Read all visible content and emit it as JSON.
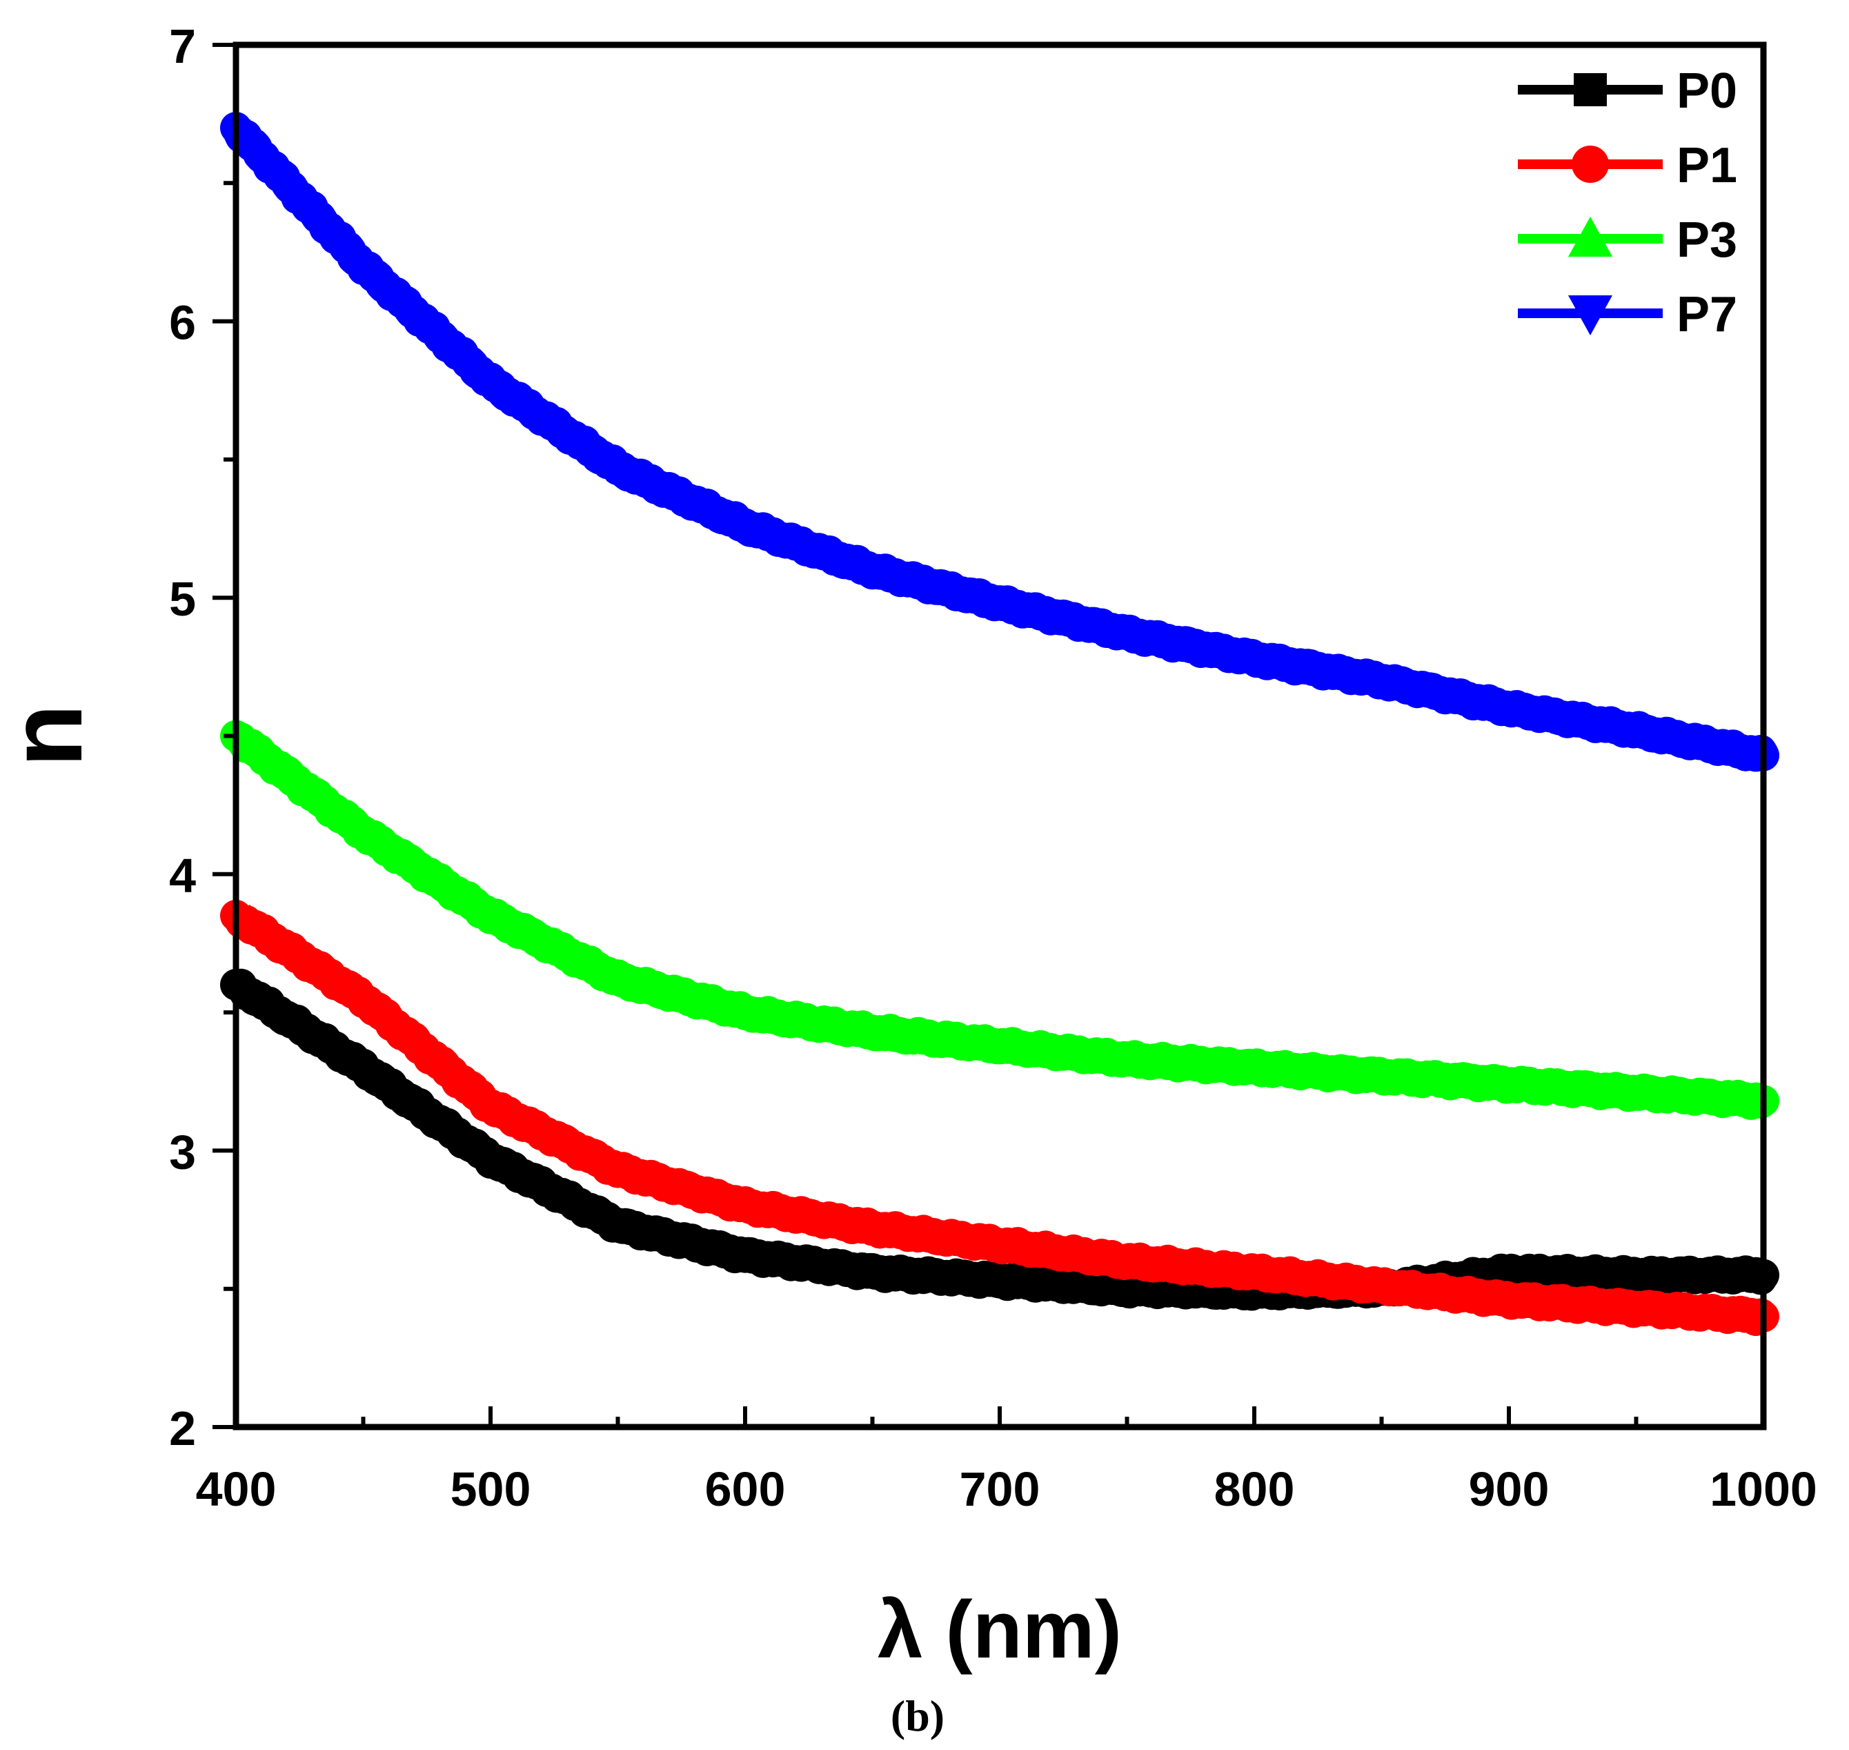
{
  "chart_data": {
    "type": "line",
    "title": "",
    "xlabel": "λ (nm)",
    "ylabel": "n",
    "xlim": [
      400,
      1000
    ],
    "ylim": [
      2,
      7
    ],
    "xticks": [
      400,
      500,
      600,
      700,
      800,
      900,
      1000
    ],
    "yticks": [
      2,
      3,
      4,
      5,
      6,
      7
    ],
    "grid": false,
    "legend_position": "top-right",
    "caption": "(b)",
    "x": [
      400,
      450,
      500,
      550,
      600,
      650,
      700,
      750,
      800,
      850,
      900,
      950,
      1000
    ],
    "series": [
      {
        "name": "P0",
        "color": "#000000",
        "marker": "square",
        "values": [
          3.6,
          3.3,
          2.97,
          2.73,
          2.62,
          2.56,
          2.53,
          2.5,
          2.49,
          2.5,
          2.56,
          2.55,
          2.55
        ]
      },
      {
        "name": "P1",
        "color": "#ff0000",
        "marker": "circle",
        "values": [
          3.85,
          3.55,
          3.16,
          2.93,
          2.8,
          2.72,
          2.66,
          2.6,
          2.56,
          2.51,
          2.46,
          2.43,
          2.4
        ]
      },
      {
        "name": "P3",
        "color": "#00ff00",
        "marker": "triangle-up",
        "values": [
          4.5,
          4.15,
          3.85,
          3.62,
          3.5,
          3.43,
          3.38,
          3.33,
          3.3,
          3.27,
          3.24,
          3.21,
          3.18
        ]
      },
      {
        "name": "P7",
        "color": "#0000ff",
        "marker": "triangle-down",
        "values": [
          6.7,
          6.2,
          5.78,
          5.47,
          5.26,
          5.1,
          4.98,
          4.87,
          4.78,
          4.7,
          4.6,
          4.52,
          4.43
        ]
      }
    ]
  }
}
